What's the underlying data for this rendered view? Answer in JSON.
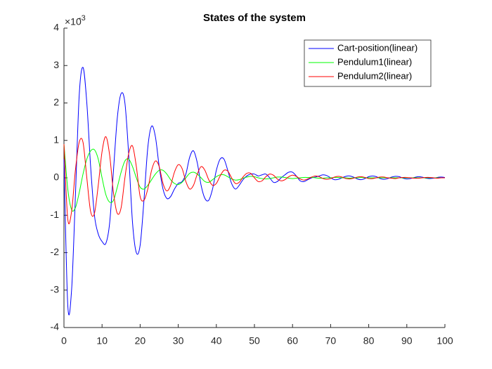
{
  "chart_data": {
    "type": "line",
    "title": "States of the system",
    "y_multiplier_base": "×10",
    "y_multiplier_exponent": "-3",
    "xlim": [
      0,
      100
    ],
    "xticks": [
      0,
      10,
      20,
      30,
      40,
      50,
      60,
      70,
      80,
      90,
      100
    ],
    "ylim": [
      -4,
      4
    ],
    "yticks": [
      -4,
      -3,
      -2,
      -1,
      0,
      1,
      2,
      3,
      4
    ],
    "legend": "top-right",
    "x": [
      0,
      1,
      2,
      3,
      4,
      5,
      6,
      7,
      8,
      9,
      10,
      11,
      12,
      13,
      14,
      15,
      16,
      17,
      18,
      19,
      20,
      21,
      22,
      23,
      24,
      25,
      26,
      27,
      28,
      29,
      30,
      31,
      32,
      33,
      34,
      35,
      36,
      37,
      38,
      39,
      40,
      41,
      42,
      43,
      44,
      45,
      46,
      47,
      48,
      49,
      50,
      51,
      52,
      53,
      54,
      55,
      56,
      57,
      58,
      59,
      60,
      61,
      62,
      63,
      64,
      65,
      66,
      67,
      68,
      69,
      70,
      71,
      72,
      73,
      74,
      75,
      76,
      77,
      78,
      79,
      80,
      81,
      82,
      83,
      84,
      85,
      86,
      87,
      88,
      89,
      90,
      91,
      92,
      93,
      94,
      95,
      96,
      97,
      98,
      99,
      100
    ],
    "series": [
      {
        "name": "Cart-position(linear)",
        "color": "#0000ff",
        "values": [
          0.5,
          -3.4,
          -3.0,
          -0.5,
          2.2,
          2.95,
          2.0,
          0.3,
          -1.0,
          -1.5,
          -1.7,
          -1.75,
          -1.2,
          0.2,
          1.6,
          2.25,
          2.0,
          0.6,
          -1.2,
          -2.0,
          -1.8,
          -0.6,
          0.8,
          1.38,
          1.1,
          0.3,
          -0.3,
          -0.55,
          -0.5,
          -0.3,
          -0.15,
          -0.1,
          0.1,
          0.55,
          0.72,
          0.4,
          -0.2,
          -0.55,
          -0.6,
          -0.3,
          0.2,
          0.5,
          0.5,
          0.2,
          -0.15,
          -0.3,
          -0.2,
          -0.05,
          0.05,
          0.1,
          0.1,
          0.05,
          0.08,
          0.1,
          0.0,
          -0.12,
          -0.1,
          0.0,
          0.08,
          0.15,
          0.15,
          0.05,
          -0.08,
          -0.1,
          -0.05,
          0.0,
          0.02,
          0.05,
          0.08,
          0.06,
          0.0,
          -0.05,
          -0.04,
          0.0,
          0.04,
          0.05,
          0.02,
          -0.03,
          -0.05,
          -0.02,
          0.03,
          0.05,
          0.03,
          -0.02,
          -0.04,
          -0.02,
          0.02,
          0.04,
          0.03,
          -0.01,
          -0.03,
          -0.02,
          0.01,
          0.03,
          0.02,
          -0.01,
          -0.02,
          -0.01,
          0.01,
          0.02,
          0.01
        ]
      },
      {
        "name": "Pendulum1(linear)",
        "color": "#00ff00",
        "values": [
          0.9,
          -0.3,
          -0.85,
          -0.8,
          -0.4,
          0.1,
          0.5,
          0.72,
          0.75,
          0.5,
          0.0,
          -0.45,
          -0.65,
          -0.6,
          -0.25,
          0.15,
          0.45,
          0.5,
          0.3,
          0.0,
          -0.25,
          -0.3,
          -0.2,
          -0.05,
          0.1,
          0.2,
          0.2,
          0.1,
          -0.05,
          -0.15,
          -0.18,
          -0.12,
          0.0,
          0.12,
          0.15,
          0.1,
          0.0,
          -0.1,
          -0.12,
          -0.05,
          0.03,
          0.08,
          0.08,
          0.03,
          -0.03,
          -0.06,
          -0.05,
          -0.01,
          0.02,
          0.04,
          0.03,
          0.0,
          -0.02,
          -0.03,
          -0.02,
          0.0,
          0.02,
          0.02,
          0.01,
          -0.01,
          -0.02,
          -0.01,
          0.0,
          0.01,
          0.01,
          0.01,
          0.0,
          -0.01,
          -0.01,
          0.0,
          0.0,
          0.01,
          0.01,
          0.0,
          0.0,
          -0.01,
          0.0,
          0.0,
          0.01,
          0.0,
          0.0,
          0.0,
          0.0,
          0.0,
          0.0,
          0.0,
          0.0,
          0.0,
          0.0,
          0.0,
          0.0,
          0.0,
          0.0,
          0.0,
          0.0,
          0.0,
          0.0,
          0.0,
          0.0,
          0.0,
          0.0
        ]
      },
      {
        "name": "Pendulum2(linear)",
        "color": "#ff0000",
        "values": [
          0.9,
          -1.1,
          -0.9,
          0.2,
          0.95,
          0.95,
          0.0,
          -0.9,
          -0.95,
          -0.2,
          0.7,
          1.1,
          0.6,
          -0.4,
          -0.95,
          -0.8,
          0.0,
          0.65,
          0.85,
          0.3,
          -0.5,
          -0.6,
          -0.3,
          0.2,
          0.45,
          0.3,
          -0.15,
          -0.35,
          -0.2,
          0.15,
          0.35,
          0.25,
          -0.1,
          -0.3,
          -0.2,
          0.1,
          0.3,
          0.2,
          -0.05,
          -0.2,
          -0.15,
          0.05,
          0.2,
          0.18,
          0.0,
          -0.15,
          -0.12,
          0.02,
          0.12,
          0.12,
          0.0,
          -0.1,
          -0.08,
          0.03,
          0.1,
          0.07,
          -0.03,
          -0.08,
          -0.05,
          0.03,
          0.07,
          0.04,
          -0.03,
          -0.06,
          -0.03,
          0.02,
          0.05,
          0.03,
          -0.02,
          -0.04,
          -0.02,
          0.02,
          0.04,
          0.02,
          -0.02,
          -0.03,
          -0.01,
          0.02,
          0.03,
          0.01,
          -0.02,
          -0.02,
          0.0,
          0.02,
          0.02,
          0.0,
          -0.01,
          -0.02,
          0.0,
          0.01,
          0.01,
          0.0,
          -0.01,
          -0.01,
          0.0,
          0.01,
          0.01,
          0.0,
          -0.01,
          0.0,
          0.0
        ]
      }
    ]
  }
}
